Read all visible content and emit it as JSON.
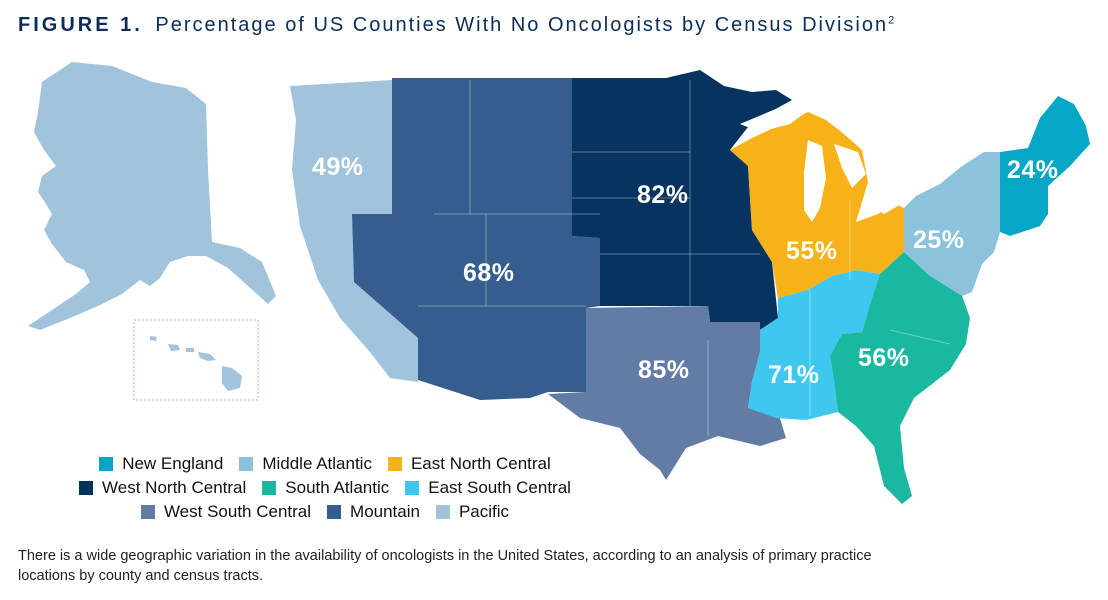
{
  "figure": {
    "label": "FIGURE 1",
    "dot": ".",
    "title": "Percentage of US Counties With No Oncologists by Census Division",
    "superscript": "2"
  },
  "colors": {
    "new_england": "#06a6c6",
    "middle_atlantic": "#8cc2dc",
    "east_north_central": "#f6b218",
    "west_north_central": "#06335f",
    "south_atlantic": "#1ab8a1",
    "east_south_central": "#3ec8f0",
    "west_south_central": "#627ca6",
    "mountain": "#355d8d",
    "pacific": "#a1c3db"
  },
  "divisions": {
    "pacific": "49%",
    "mountain": "68%",
    "west_north_central": "82%",
    "west_south_central": "85%",
    "east_north_central": "55%",
    "east_south_central": "71%",
    "south_atlantic": "56%",
    "middle_atlantic": "25%",
    "new_england": "24%"
  },
  "legend": {
    "rows": [
      [
        {
          "label": "New England",
          "color_key": "new_england"
        },
        {
          "label": "Middle Atlantic",
          "color_key": "middle_atlantic"
        },
        {
          "label": "East North Central",
          "color_key": "east_north_central"
        }
      ],
      [
        {
          "label": "West North Central",
          "color_key": "west_north_central"
        },
        {
          "label": "South Atlantic",
          "color_key": "south_atlantic"
        },
        {
          "label": "East South Central",
          "color_key": "east_south_central"
        }
      ],
      [
        {
          "label": "West South Central",
          "color_key": "west_south_central"
        },
        {
          "label": "Mountain",
          "color_key": "mountain"
        },
        {
          "label": "Pacific",
          "color_key": "pacific"
        }
      ]
    ]
  },
  "caption": "There is a wide geographic variation in the availability of oncologists in the United States, according to an analysis of primary practice locations by county and census tracts."
}
